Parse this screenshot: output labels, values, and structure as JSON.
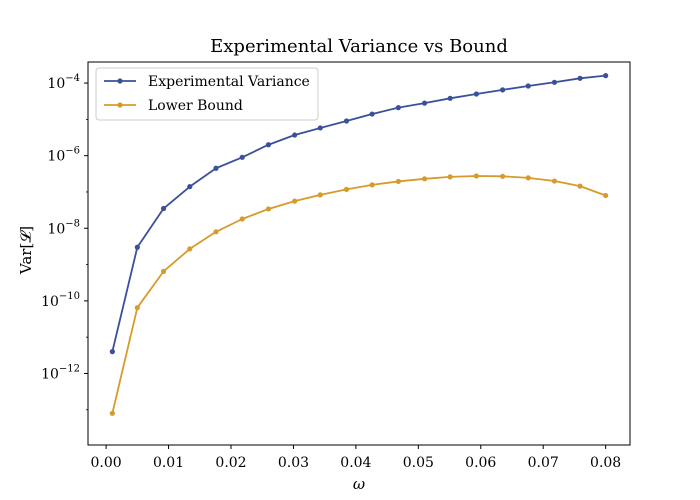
{
  "chart_data": {
    "type": "line",
    "title": "Experimental Variance vs Bound",
    "xlabel": "ω",
    "ylabel": "Var[𝓛]",
    "x": [
      0.001,
      0.005,
      0.0092,
      0.0134,
      0.0176,
      0.0218,
      0.026,
      0.0302,
      0.0343,
      0.0385,
      0.0426,
      0.0468,
      0.051,
      0.0551,
      0.0593,
      0.0635,
      0.0676,
      0.0718,
      0.0759,
      0.08
    ],
    "xlim": [
      -0.0029,
      0.0839
    ],
    "xticks": [
      0.0,
      0.01,
      0.02,
      0.03,
      0.04,
      0.05,
      0.06,
      0.07,
      0.08
    ],
    "xtick_labels": [
      "0.00",
      "0.01",
      "0.02",
      "0.03",
      "0.04",
      "0.05",
      "0.06",
      "0.07",
      "0.08"
    ],
    "yscale": "log",
    "ylim_exp": [
      -13.97,
      -3.42
    ],
    "yticks_exp": [
      -12,
      -10,
      -8,
      -6,
      -4
    ],
    "ytick_labels": [
      "10",
      "10",
      "10",
      "10",
      "10"
    ],
    "ytick_sups": [
      "−12",
      "−10",
      "−8",
      "−6",
      "−4"
    ],
    "grid": false,
    "legend": "top-left",
    "series": [
      {
        "name": "Experimental Variance",
        "color": "#3a519a",
        "y": [
          4e-12,
          3e-09,
          3.5e-08,
          1.4e-07,
          4.5e-07,
          9e-07,
          2e-06,
          3.7e-06,
          5.8e-06,
          9e-06,
          1.4e-05,
          2.1e-05,
          2.8e-05,
          3.8e-05,
          5e-05,
          6.5e-05,
          8.3e-05,
          0.000105,
          0.000135,
          0.00016
        ]
      },
      {
        "name": "Lower Bound",
        "color": "#d69b2a",
        "y": [
          8e-14,
          6.5e-11,
          6.5e-10,
          2.7e-09,
          8e-09,
          1.8e-08,
          3.4e-08,
          5.6e-08,
          8.3e-08,
          1.18e-07,
          1.57e-07,
          1.95e-07,
          2.3e-07,
          2.6e-07,
          2.75e-07,
          2.7e-07,
          2.45e-07,
          2e-07,
          1.45e-07,
          8e-08
        ]
      }
    ]
  }
}
